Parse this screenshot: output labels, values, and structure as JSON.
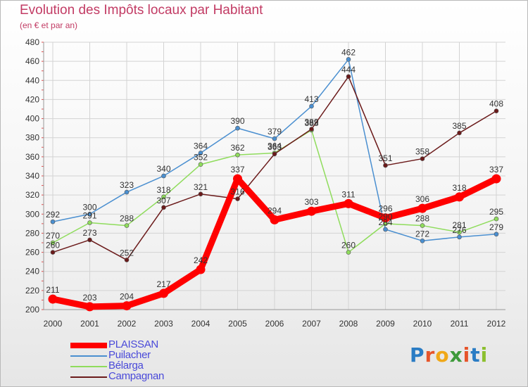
{
  "title": "Evolution des Impôts locaux par Habitant",
  "subtitle": "(en € et par an)",
  "brand": {
    "letters": [
      "P",
      "r",
      "o",
      "x",
      "i",
      "t",
      "i"
    ]
  },
  "colors": {
    "title": "#c23b64",
    "legend_text": "#4a4ad9",
    "axis_text": "#333333",
    "grid": "#d3d3d3"
  },
  "chart_data": {
    "type": "line",
    "title": "Evolution des Impôts locaux par Habitant",
    "ylabel": "(en € et par an)",
    "xlabel": "",
    "ylim": [
      200,
      480
    ],
    "yticks": [
      200,
      220,
      240,
      260,
      280,
      300,
      320,
      340,
      360,
      380,
      400,
      420,
      440,
      460,
      480
    ],
    "grid": true,
    "legend_position": "bottom-left",
    "categories": [
      "2000",
      "2001",
      "2002",
      "2003",
      "2004",
      "2005",
      "2006",
      "2007",
      "2008",
      "2009",
      "2010",
      "2011",
      "2012"
    ],
    "series": [
      {
        "name": "PLAISSAN",
        "color": "#ff0000",
        "values": [
          211,
          203,
          204,
          217,
          242,
          337,
          294,
          303,
          311,
          296,
          306,
          318,
          337
        ]
      },
      {
        "name": "Puilacher",
        "color": "#4a8fd0",
        "values": [
          292,
          300,
          323,
          340,
          364,
          390,
          379,
          413,
          462,
          284,
          272,
          276,
          279
        ]
      },
      {
        "name": "Bélarga",
        "color": "#8fdc5c",
        "values": [
          270,
          291,
          288,
          318,
          352,
          362,
          364,
          388,
          260,
          290,
          288,
          281,
          295
        ]
      },
      {
        "name": "Campagnan",
        "color": "#6b1a1a",
        "values": [
          260,
          273,
          252,
          307,
          321,
          316,
          363,
          389,
          444,
          351,
          358,
          385,
          408
        ]
      }
    ]
  }
}
